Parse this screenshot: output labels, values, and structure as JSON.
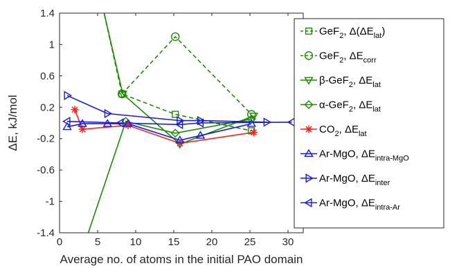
{
  "chart_data": {
    "type": "line",
    "xlabel": "Average no. of atoms in the initial PAO domain",
    "ylabel": "ΔE, kJ/mol",
    "xlim": [
      0,
      32
    ],
    "ylim": [
      -1.4,
      1.4
    ],
    "xticks": [
      "0",
      "5",
      "10",
      "15",
      "20",
      "25",
      "30"
    ],
    "xtick_values": [
      0,
      5,
      10,
      15,
      20,
      25,
      30
    ],
    "yticks": [
      "1.4",
      "1",
      "0.6",
      "0.2",
      "-0.2",
      "-0.6",
      "-1",
      "-1.4"
    ],
    "ytick_values": [
      1.4,
      1,
      0.6,
      0.2,
      -0.2,
      -0.6,
      -1,
      -1.4
    ],
    "grid": false,
    "legend_position": "right",
    "series": [
      {
        "name": "GeF2, Δ(ΔElat)",
        "legend": {
          "pre": "GeF",
          "sub1": "2",
          "mid": ", Δ(ΔE",
          "sub2": "lat",
          "post": ")"
        },
        "color": "#1b8c00",
        "marker": "square",
        "dash": true,
        "x": [
          5.5,
          8.2,
          15.2,
          25.2
        ],
        "y": [
          1.55,
          0.37,
          0.11,
          -0.1
        ]
      },
      {
        "name": "GeF2, ΔEcorr",
        "legend": {
          "pre": "GeF",
          "sub1": "2",
          "mid": ", ΔE",
          "sub2": "corr",
          "post": ""
        },
        "color": "#1b8c00",
        "marker": "circle",
        "dash": true,
        "x": [
          8.2,
          15.2,
          25.2
        ],
        "y": [
          0.37,
          1.1,
          0.11
        ]
      },
      {
        "name": "β-GeF2, ΔElat",
        "legend": {
          "pre": "β-GeF",
          "sub1": "2",
          "mid": ",  ΔE",
          "sub2": "lat",
          "post": ""
        },
        "color": "#1b8c00",
        "marker": "triangle-down",
        "dash": false,
        "x": [
          5.5,
          8.3,
          15.8,
          25.5
        ],
        "y": [
          1.55,
          0.37,
          -0.27,
          0.09
        ]
      },
      {
        "name": "α-GeF2, ΔElat",
        "legend": {
          "pre": "α-GeF",
          "sub1": "2",
          "mid": ",  ΔE",
          "sub2": "lat",
          "post": ""
        },
        "color": "#1b8c00",
        "marker": "diamond",
        "dash": false,
        "x": [
          3.6,
          8.7,
          15.2,
          25.2
        ],
        "y": [
          -1.45,
          0.02,
          -0.13,
          0.05
        ]
      },
      {
        "name": "CO2, ΔElat",
        "legend": {
          "pre": "CO",
          "sub1": "2",
          "mid": ", ΔE",
          "sub2": "lat",
          "post": ""
        },
        "color": "#ff2020",
        "marker": "asterisk",
        "dash": false,
        "x": [
          2.0,
          3.0,
          9.0,
          15.8,
          25.5
        ],
        "y": [
          0.17,
          -0.08,
          -0.03,
          -0.26,
          -0.12
        ]
      },
      {
        "name": "Ar-MgO, ΔEintra-MgO",
        "legend": {
          "pre": "Ar-MgO,  ΔE",
          "sub1": "",
          "mid": "",
          "sub2": "intra-MgO",
          "post": ""
        },
        "color": "#1818e8",
        "marker": "triangle-up",
        "dash": false,
        "x": [
          1.0,
          3.0,
          6.3,
          9.0,
          15.8,
          18.5,
          25.2
        ],
        "y": [
          -0.05,
          -0.01,
          -0.01,
          -0.01,
          -0.22,
          -0.16,
          -0.01
        ]
      },
      {
        "name": "Ar-MgO, ΔEinter",
        "legend": {
          "pre": "Ar-MgO,  ΔE",
          "sub1": "",
          "mid": "",
          "sub2": "inter",
          "post": ""
        },
        "color": "#1818e8",
        "marker": "triangle-right",
        "dash": false,
        "x": [
          1.0,
          6.3,
          15.8,
          18.5,
          27.2
        ],
        "y": [
          0.35,
          0.12,
          0.03,
          0.03,
          0.01
        ]
      },
      {
        "name": "Ar-MgO, ΔEintra-Ar",
        "legend": {
          "pre": "Ar-MgO,  ΔE",
          "sub1": "",
          "mid": "",
          "sub2": "intra-Ar",
          "post": ""
        },
        "color": "#1818e8",
        "marker": "triangle-left",
        "dash": false,
        "x": [
          1.0,
          8.0,
          15.8,
          18.5,
          30.5
        ],
        "y": [
          0.02,
          0.0,
          -0.02,
          0.0,
          0.01
        ]
      }
    ]
  }
}
